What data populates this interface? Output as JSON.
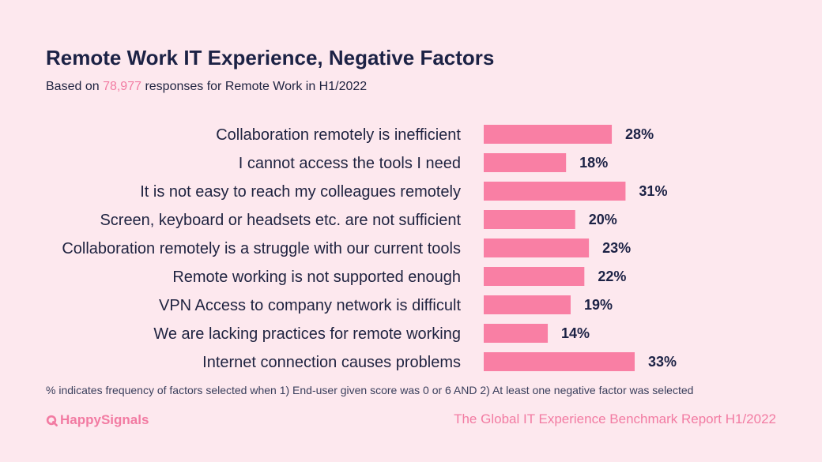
{
  "title": "Remote Work IT Experience, Negative Factors",
  "subtitle": {
    "prefix": "Based on ",
    "count": "78,977",
    "suffix": " responses for Remote Work in H1/2022"
  },
  "footnote": "% indicates frequency of factors selected when 1) End-user given score was 0 or 6 AND 2) At least one negative factor was selected",
  "brand": {
    "logo_text": "HappySignals",
    "logo_icon": "q-logo-icon",
    "report_name": "The Global IT Experience Benchmark Report H1/2022"
  },
  "colors": {
    "background": "#fde8ee",
    "bar": "#f97fa4",
    "accent_text": "#f27ba2",
    "title": "#1c2245"
  },
  "chart_data": {
    "type": "bar",
    "orientation": "horizontal",
    "categories": [
      "Collaboration remotely is inefficient",
      "I cannot access the tools I need",
      "It is not easy to reach my colleagues remotely",
      "Screen, keyboard or headsets etc. are not sufficient",
      "Collaboration remotely is a struggle with our current tools",
      "Remote working is not supported enough",
      "VPN Access to company network is difficult",
      "We are lacking practices for remote working",
      "Internet connection causes problems"
    ],
    "values": [
      28,
      18,
      31,
      20,
      23,
      22,
      19,
      14,
      33
    ],
    "value_labels": [
      "28%",
      "18%",
      "31%",
      "20%",
      "23%",
      "22%",
      "19%",
      "14%",
      "33%"
    ],
    "unit": "%",
    "xlim": [
      0,
      33
    ],
    "grid": false,
    "legend": "none"
  }
}
